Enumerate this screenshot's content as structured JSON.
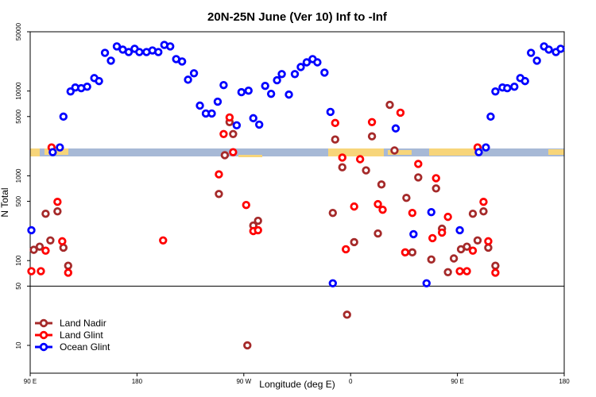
{
  "chart_data": {
    "type": "scatter",
    "title": "20N-25N June (Ver 10)   Inf to -Inf",
    "x_label": "Longitude (deg E)",
    "y_label": "N Total",
    "log_y": true,
    "legend": "lower left",
    "xlim": [
      90,
      540
    ],
    "xticks": [
      {
        "value": 90,
        "label": "90 E"
      },
      180,
      {
        "value": 270,
        "label": "90 W"
      },
      {
        "value": 360,
        "label": "0"
      },
      {
        "value": 450,
        "label": "90 E"
      },
      {
        "value": 540,
        "label": "180"
      }
    ],
    "ylim": [
      4.7,
      50000
    ],
    "yticks": [
      10,
      50,
      100,
      500,
      1000,
      5000,
      10000,
      50000
    ],
    "hline": 50,
    "series": [
      {
        "name": "Land Nadir",
        "color": "#a52a2a",
        "x": [
          93,
          98,
          103,
          107,
          113,
          118,
          122,
          249,
          254,
          258,
          261,
          278,
          282,
          273,
          345,
          347,
          353,
          357,
          363,
          373,
          378,
          383,
          386,
          393,
          397,
          407,
          412,
          417,
          428,
          432,
          437,
          442,
          447,
          453,
          458,
          463,
          467,
          472,
          476,
          482
        ],
        "values": [
          134,
          146,
          357,
          173,
          381,
          142,
          87,
          611,
          1750,
          4300,
          3110,
          259,
          295,
          10,
          365,
          2680,
          1260,
          23,
          165,
          1160,
          2920,
          209,
          790,
          6870,
          1990,
          549,
          125,
          958,
          103,
          710,
          238,
          73,
          106,
          136,
          146,
          357,
          173,
          381,
          142,
          87
        ]
      },
      {
        "name": "Land Glint",
        "color": "#ff0000",
        "x": [
          91,
          99,
          103,
          108,
          113,
          117,
          122,
          202,
          249,
          253,
          258,
          261,
          272,
          278,
          282,
          347,
          353,
          356,
          363,
          368,
          378,
          383,
          387,
          402,
          406,
          412,
          417,
          429,
          432,
          437,
          442,
          452,
          458,
          463,
          467,
          472,
          476,
          482
        ],
        "values": [
          75,
          75,
          131,
          2160,
          493,
          169,
          72,
          173,
          1040,
          3110,
          4880,
          1900,
          453,
          223,
          228,
          4200,
          1640,
          136,
          434,
          1570,
          4300,
          463,
          398,
          5550,
          125,
          365,
          1380,
          184,
          938,
          214,
          328,
          75,
          75,
          131,
          2160,
          493,
          169,
          72
        ]
      },
      {
        "name": "Ocean Glint",
        "color": "#0000ff",
        "x": [
          91,
          109,
          115,
          118,
          124,
          128,
          133,
          138,
          144,
          148,
          153,
          158,
          163,
          168,
          173,
          178,
          182,
          188,
          193,
          198,
          203,
          208,
          213,
          218,
          223,
          228,
          233,
          238,
          243,
          248,
          253,
          264,
          268,
          274,
          278,
          283,
          288,
          293,
          298,
          302,
          308,
          313,
          318,
          323,
          328,
          332,
          338,
          343,
          345,
          398,
          413,
          424,
          428,
          452,
          468,
          474,
          478,
          482,
          488,
          492,
          498,
          503,
          507,
          512,
          517,
          523,
          527,
          533,
          537
        ],
        "values": [
          228,
          1900,
          2160,
          4990,
          9890,
          11000,
          10800,
          11250,
          14200,
          13100,
          28200,
          22800,
          33600,
          30800,
          28800,
          31500,
          28800,
          28800,
          30100,
          28800,
          35000,
          33600,
          23800,
          22300,
          13600,
          16200,
          6730,
          5430,
          5430,
          7490,
          11750,
          3940,
          9690,
          10100,
          4780,
          4020,
          11500,
          9270,
          13400,
          15850,
          9080,
          15850,
          19200,
          21800,
          23800,
          21800,
          16500,
          5670,
          54,
          3620,
          205,
          54,
          373,
          228,
          1900,
          2160,
          4990,
          9890,
          11000,
          10800,
          11250,
          14200,
          13100,
          28200,
          22800,
          33600,
          30800,
          28800,
          31500
        ]
      }
    ]
  }
}
